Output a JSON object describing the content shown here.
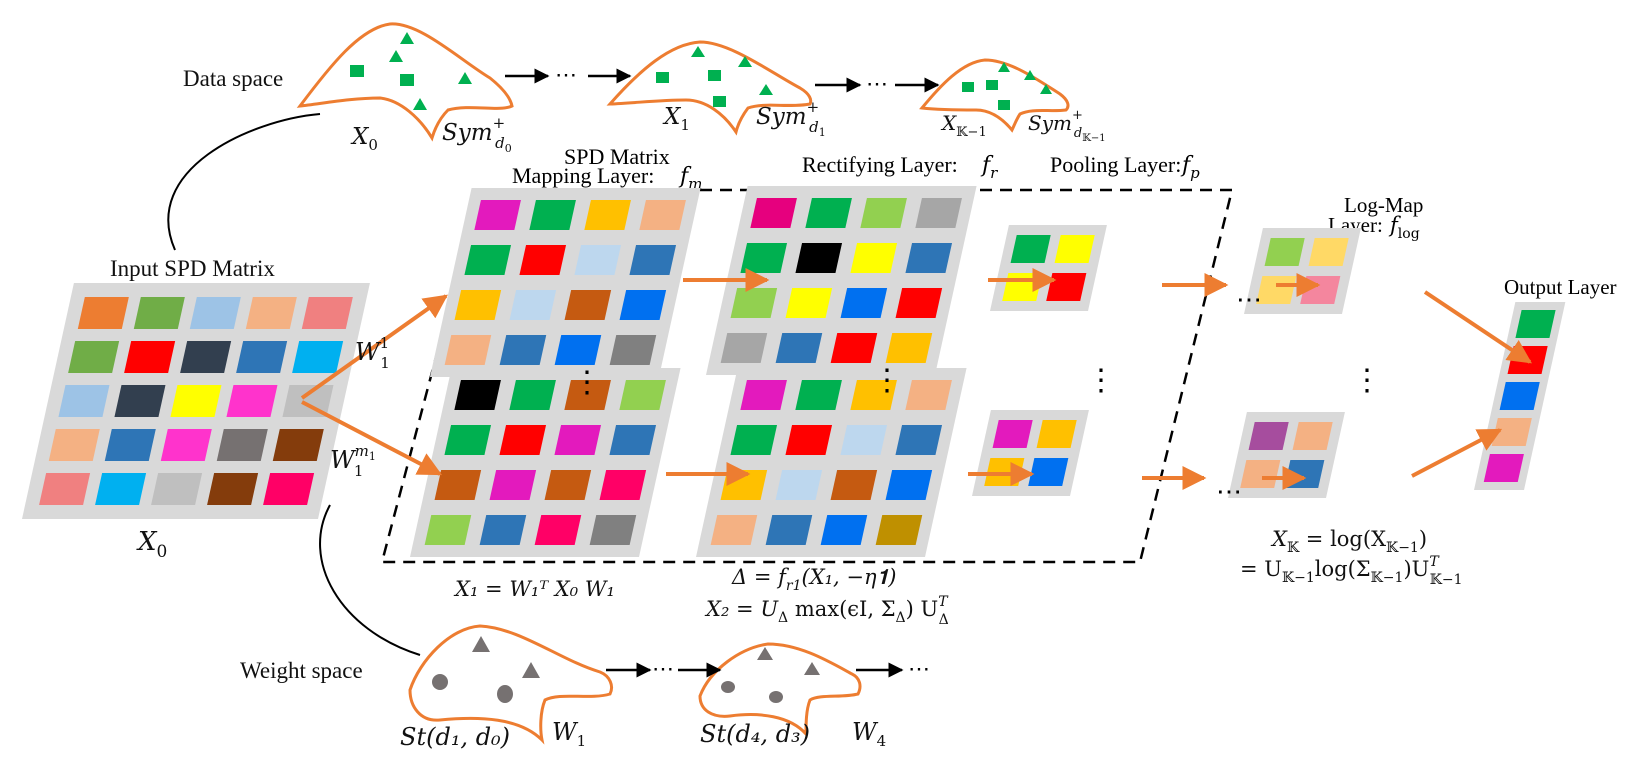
{
  "labels": {
    "data_space": "Data space",
    "weight_space": "Weight space",
    "input_spd_matrix": "Input SPD Matrix",
    "spd_mapping_line1": "SPD Matrix",
    "spd_mapping_line2": "Mapping Layer:",
    "rectifying_layer": "Rectifying Layer:",
    "pooling_layer": "Pooling Layer:",
    "logmap_line1": "Log-Map",
    "logmap_line2": "Layer:",
    "output_layer": "Output Layer"
  },
  "math": {
    "x0": "X",
    "x0_sub": "0",
    "x1": "X",
    "x1_sub": "1",
    "xk1": "X",
    "xk1_sub": "𝕂−1",
    "sym": "Sym",
    "sym_sup": "+",
    "d0_sub": "d",
    "d0_subsub": "0",
    "d1_subsub": "1",
    "dk1_subsub": "𝕂−1",
    "f": "f",
    "fm_sub": "m",
    "fr_sub": "r",
    "fp_sub": "p",
    "flog_sub": "log",
    "w": "W",
    "w1_sub": "1",
    "w1_sup": "1",
    "wm1_sup": "m",
    "wm1_supsub": "1",
    "st1": "St(d₁, d₀)",
    "st4": "St(d₄, d₃)",
    "w1_label": "W",
    "w4_label": "W",
    "w4_sub": "4",
    "ellipsis": "⋯",
    "vdots": "⋮",
    "eq_mapping": "X₁ = W₁ᵀ X₀ W₁",
    "eq_rect1": "Δ = f",
    "eq_rect1_sub": "r1",
    "eq_rect1_tail": "(X₁, −η𝟏)",
    "eq_rect2": "X₂ = U",
    "eq_rect2_sub": "Δ",
    "eq_rect2_mid": " max(ϵI, Σ",
    "eq_rect2_mid_sub": "Δ",
    "eq_rect2_tail": ") U",
    "eq_rect2_tail_sup": "T",
    "eq_rect2_tail_sub": "Δ",
    "eq_log1": "X",
    "eq_log1_sub": "𝕂",
    "eq_log1_tail": " = log(X",
    "eq_log1_sub2": "𝕂−1",
    "eq_log2_head": "= U",
    "eq_log2_sub": "𝕂−1",
    "eq_log2_mid": "log(Σ",
    "eq_log2_sub2": "𝕂−1",
    "eq_log2_tail": ")U",
    "eq_log2_sup": "T",
    "eq_log2_sub3": "𝕂−1"
  },
  "colors": {
    "arrow": "#ED7D31",
    "manifold": "#ED7D31",
    "data_glyph": "#00B050",
    "weight_glyph": "#767171",
    "panel": "#D9D9D9"
  },
  "icons": {
    "data_markers": [
      "square-icon",
      "triangle-icon"
    ],
    "weight_markers": [
      "circle-icon",
      "triangle-icon"
    ]
  },
  "matrices": {
    "input": [
      [
        "#ED7D31",
        "#70AD47",
        "#9DC3E6",
        "#F4B183",
        "#F08080"
      ],
      [
        "#70AD47",
        "#FF0000",
        "#323F4F",
        "#2E75B6",
        "#00B0F0"
      ],
      [
        "#9DC3E6",
        "#323F4F",
        "#FFFF00",
        "#FF33CC",
        "#BFBFBF"
      ],
      [
        "#F4B183",
        "#2E75B6",
        "#FF33CC",
        "#767171",
        "#843C0C"
      ],
      [
        "#F08080",
        "#00B0F0",
        "#BFBFBF",
        "#843C0C",
        "#FF0066"
      ]
    ],
    "map_top": [
      [
        "#E31ABD",
        "#00B050",
        "#FFC000",
        "#F4B183"
      ],
      [
        "#00B050",
        "#FF0000",
        "#BDD7EE",
        "#2E75B6"
      ],
      [
        "#FFC000",
        "#BDD7EE",
        "#C55A11",
        "#0070F0"
      ],
      [
        "#F4B183",
        "#2E75B6",
        "#0070F0",
        "#808080"
      ]
    ],
    "map_bottom": [
      [
        "#000000",
        "#00B050",
        "#C55A11",
        "#92D050"
      ],
      [
        "#00B050",
        "#FF0000",
        "#E31ABD",
        "#2E75B6"
      ],
      [
        "#C55A11",
        "#E31ABD",
        "#C55A11",
        "#FF0066"
      ],
      [
        "#92D050",
        "#2E75B6",
        "#FF0066",
        "#808080"
      ]
    ],
    "rect_top": [
      [
        "#E6007E",
        "#00B050",
        "#92D050",
        "#A6A6A6"
      ],
      [
        "#00B050",
        "#000000",
        "#FFFF00",
        "#2E75B6"
      ],
      [
        "#92D050",
        "#FFFF00",
        "#0070F0",
        "#FF0000"
      ],
      [
        "#A6A6A6",
        "#2E75B6",
        "#FF0000",
        "#FFC000"
      ]
    ],
    "rect_bottom": [
      [
        "#E31ABD",
        "#00B050",
        "#FFC000",
        "#F4B183"
      ],
      [
        "#00B050",
        "#FF0000",
        "#BDD7EE",
        "#2E75B6"
      ],
      [
        "#FFC000",
        "#BDD7EE",
        "#C55A11",
        "#0070F0"
      ],
      [
        "#F4B183",
        "#2E75B6",
        "#0070F0",
        "#BF9000"
      ]
    ],
    "pool_top": [
      [
        "#00B050",
        "#FFFF00"
      ],
      [
        "#FFFF00",
        "#FF0000"
      ]
    ],
    "pool_bottom": [
      [
        "#E31ABD",
        "#FFC000"
      ],
      [
        "#FFC000",
        "#0070F0"
      ]
    ],
    "log_top": [
      [
        "#92D050",
        "#FFD966"
      ],
      [
        "#FFD966",
        "#F4869E"
      ]
    ],
    "log_bottom": [
      [
        "#A64D9E",
        "#F4B183"
      ],
      [
        "#F4B183",
        "#2E75B6"
      ]
    ],
    "output": [
      "#00B050",
      "#FF0000",
      "#0070F0",
      "#F4B183",
      "#E31ABD"
    ]
  }
}
